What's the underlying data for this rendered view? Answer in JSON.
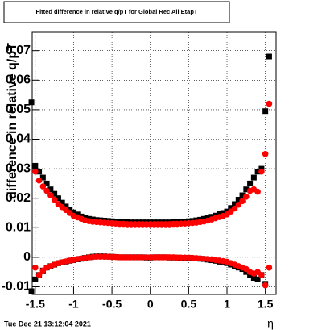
{
  "chart_data": {
    "type": "scatter",
    "title": "Fitted difference in relative q/pT for Global Rec All EtapT",
    "x_label": "η",
    "y_label": "difference in relative q/pT",
    "timestamp": "Tue Dec 21 13:12:04 2021",
    "xlim": [
      -1.54,
      1.64
    ],
    "ylim": [
      -0.0126,
      0.0762
    ],
    "xticks": [
      -1.5,
      -1,
      -0.5,
      0,
      0.5,
      1,
      1.5
    ],
    "yticks": [
      -0.01,
      0,
      0.01,
      0.02,
      0.03,
      0.04,
      0.05,
      0.06,
      0.07
    ],
    "grid": true,
    "x": [
      -1.55,
      -1.5,
      -1.45,
      -1.4,
      -1.35,
      -1.3,
      -1.25,
      -1.2,
      -1.15,
      -1.1,
      -1.05,
      -1,
      -0.95,
      -0.9,
      -0.85,
      -0.8,
      -0.75,
      -0.7,
      -0.65,
      -0.6,
      -0.55,
      -0.5,
      -0.45,
      -0.4,
      -0.35,
      -0.3,
      -0.25,
      -0.2,
      -0.15,
      -0.1,
      -0.05,
      0,
      0.05,
      0.1,
      0.15,
      0.2,
      0.25,
      0.3,
      0.35,
      0.4,
      0.45,
      0.5,
      0.55,
      0.6,
      0.65,
      0.7,
      0.75,
      0.8,
      0.85,
      0.9,
      0.95,
      1,
      1.05,
      1.1,
      1.15,
      1.2,
      1.25,
      1.3,
      1.35,
      1.4,
      1.45,
      1.5,
      1.55
    ],
    "series": [
      {
        "color": "#000000",
        "marker": "square",
        "values": [
          0.0525,
          0.031,
          0.029,
          0.027,
          0.025,
          0.023,
          0.0215,
          0.02,
          0.0185,
          0.0172,
          0.016,
          0.0152,
          0.0145,
          0.0138,
          0.0133,
          0.013,
          0.0128,
          0.0126,
          0.0125,
          0.0124,
          0.0123,
          0.0122,
          0.0121,
          0.012,
          0.0119,
          0.0119,
          0.0118,
          0.0118,
          0.0118,
          0.0118,
          0.0118,
          0.0118,
          0.0118,
          0.0118,
          0.0118,
          0.0118,
          0.0118,
          0.0119,
          0.0119,
          0.012,
          0.0121,
          0.0122,
          0.0123,
          0.0125,
          0.0127,
          0.013,
          0.0133,
          0.0137,
          0.0141,
          0.0146,
          0.015,
          0.0155,
          0.0167,
          0.018,
          0.0195,
          0.021,
          0.023,
          0.025,
          0.027,
          0.029,
          0.03,
          0.0495,
          0.068
        ]
      },
      {
        "color": "#ff0000",
        "marker": "circle",
        "values": [
          null,
          0.029,
          0.026,
          0.024,
          0.0225,
          0.021,
          0.0195,
          0.018,
          0.017,
          0.016,
          0.015,
          0.014,
          0.0135,
          0.013,
          0.0125,
          0.0122,
          0.012,
          0.0119,
          0.0118,
          0.0117,
          0.0116,
          0.0115,
          0.0114,
          0.0113,
          0.0113,
          0.0112,
          0.0112,
          0.0112,
          0.0112,
          0.0112,
          0.0112,
          0.0112,
          0.0112,
          0.0112,
          0.0112,
          0.0112,
          0.0112,
          0.0113,
          0.0113,
          0.0114,
          0.0114,
          0.0115,
          0.0116,
          0.0117,
          0.0119,
          0.0121,
          0.0124,
          0.0128,
          0.0132,
          0.0136,
          0.014,
          0.0145,
          0.0155,
          0.0165,
          0.0178,
          0.019,
          0.0205,
          0.0225,
          0.023,
          0.0222,
          0.029,
          0.035,
          0.052
        ]
      },
      {
        "color": "#000000",
        "marker": "square",
        "values": [
          -0.0115,
          -0.0075,
          -0.006,
          -0.0045,
          -0.0035,
          -0.003,
          -0.0025,
          -0.002,
          -0.0017,
          -0.0015,
          -0.0012,
          -0.001,
          -0.0007,
          -0.0005,
          -0.0002,
          0,
          0.0002,
          0.0003,
          0.0003,
          0.0003,
          0.0002,
          0.0002,
          0.0001,
          0,
          0,
          0,
          0,
          0,
          0,
          0,
          -0.0001,
          -0.0001,
          0,
          0,
          0,
          0,
          -0.0001,
          -0.0001,
          -0.0001,
          -0.0002,
          -0.0002,
          -0.0002,
          -0.0003,
          -0.0004,
          -0.0005,
          -0.0006,
          -0.0008,
          -0.001,
          -0.0012,
          -0.0015,
          -0.0018,
          -0.002,
          -0.0025,
          -0.003,
          -0.0035,
          -0.004,
          -0.005,
          -0.006,
          -0.007,
          -0.0075,
          -0.006,
          -0.009,
          null
        ]
      },
      {
        "color": "#ff0000",
        "marker": "circle",
        "values": [
          null,
          -0.0035,
          -0.006,
          -0.0045,
          -0.0035,
          -0.003,
          -0.0025,
          -0.002,
          -0.0017,
          -0.0014,
          -0.0011,
          -0.0009,
          -0.0006,
          -0.0004,
          -0.0002,
          0,
          0.0001,
          0.0002,
          0.0002,
          0.0002,
          0.0002,
          0.0001,
          0.0001,
          0,
          0,
          0,
          0,
          0,
          0,
          0,
          0,
          0,
          0,
          0,
          0,
          0,
          0,
          0,
          -0.0001,
          -0.0001,
          -0.0001,
          -0.0001,
          -0.0002,
          -0.0003,
          -0.0004,
          -0.0005,
          -0.0006,
          -0.0007,
          -0.0009,
          -0.0011,
          -0.0013,
          -0.0015,
          -0.002,
          -0.0025,
          -0.003,
          -0.0035,
          -0.004,
          -0.005,
          -0.0055,
          -0.005,
          -0.006,
          -0.0095,
          -0.0035
        ]
      }
    ]
  }
}
